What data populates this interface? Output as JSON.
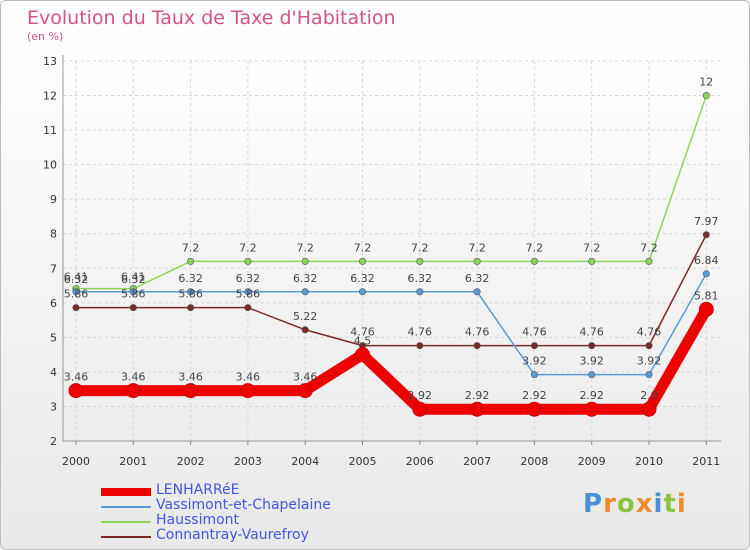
{
  "chart_data": {
    "type": "line",
    "title": "Evolution du Taux de Taxe d'Habitation",
    "ylabel": "(en %)",
    "xlabel": "",
    "ylim": [
      2,
      13
    ],
    "yticks": [
      2,
      3,
      4,
      5,
      6,
      7,
      8,
      9,
      10,
      11,
      12,
      13
    ],
    "categories": [
      "2000",
      "2001",
      "2002",
      "2003",
      "2004",
      "2005",
      "2006",
      "2007",
      "2008",
      "2009",
      "2010",
      "2011"
    ],
    "series": [
      {
        "name": "LENHARRéE",
        "color": "#ee0000",
        "values": [
          3.46,
          3.46,
          3.46,
          3.46,
          3.46,
          4.5,
          2.92,
          2.92,
          2.92,
          2.92,
          2.92,
          5.81
        ],
        "labels": [
          "3.46",
          "3.46",
          "3.46",
          "3.46",
          "3.46",
          "4.5",
          "2.92",
          "2.92",
          "2.92",
          "2.92",
          "2.9",
          "5.81"
        ]
      },
      {
        "name": "Vassimont-et-Chapelaine",
        "color": "#5a9bd5",
        "values": [
          6.32,
          6.32,
          6.32,
          6.32,
          6.32,
          6.32,
          6.32,
          6.32,
          3.92,
          3.92,
          3.92,
          6.84
        ],
        "labels": [
          "6.32",
          "6.32",
          "6.32",
          "6.32",
          "6.32",
          "6.32",
          "6.32",
          "6.32",
          "3.92",
          "3.92",
          "3.92",
          "6.84"
        ]
      },
      {
        "name": "Haussimont",
        "color": "#8fd45a",
        "values": [
          6.41,
          6.41,
          7.2,
          7.2,
          7.2,
          7.2,
          7.2,
          7.2,
          7.2,
          7.2,
          7.2,
          12
        ],
        "labels": [
          "6.41",
          "6.41",
          "7.2",
          "7.2",
          "7.2",
          "7.2",
          "7.2",
          "7.2",
          "7.2",
          "7.2",
          "7.2",
          "12"
        ]
      },
      {
        "name": "Connantray-Vaurefroy",
        "color": "#7b2a2a",
        "values": [
          5.86,
          5.86,
          5.86,
          5.86,
          5.22,
          4.76,
          4.76,
          4.76,
          4.76,
          4.76,
          4.76,
          7.97
        ],
        "labels": [
          "5.86",
          "5.86",
          "5.86",
          "5.86",
          "5.22",
          "4.76",
          "4.76",
          "4.76",
          "4.76",
          "4.76",
          "4.76",
          "7.97"
        ]
      }
    ]
  },
  "logo": {
    "letters": [
      "P",
      "r",
      "o",
      "x",
      "i",
      "t",
      "i"
    ],
    "colors": [
      "#4a90d9",
      "#f28c28",
      "#8ac43f",
      "#f28c28",
      "#4a90d9",
      "#8ac43f",
      "#f28c28"
    ]
  }
}
